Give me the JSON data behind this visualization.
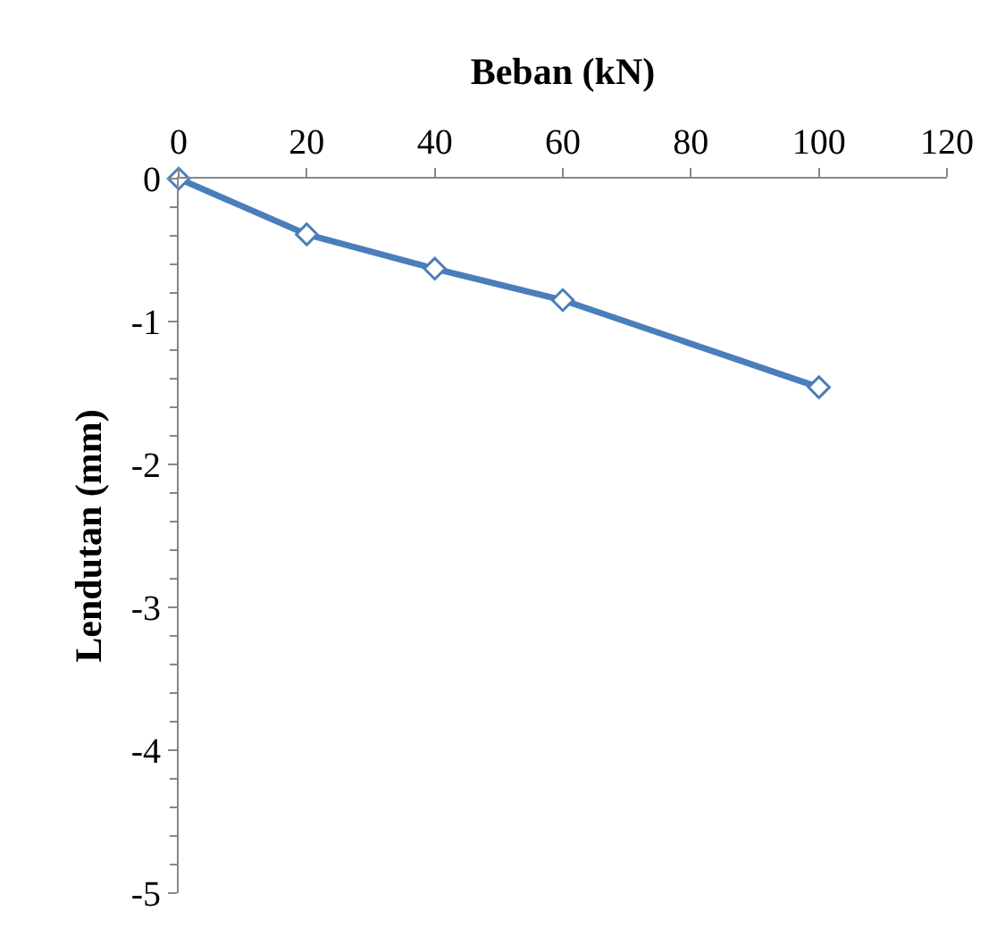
{
  "chart_data": {
    "type": "line",
    "xlabel": "Beban (kN)",
    "ylabel": "Lendutan (mm)",
    "x": [
      0,
      20,
      40,
      60,
      100
    ],
    "series": [
      {
        "color": "#4a7ebb",
        "values": [
          0,
          -0.39,
          -0.63,
          -0.85,
          -1.46
        ]
      }
    ],
    "xlim": [
      0,
      120
    ],
    "xticks": [
      0,
      20,
      40,
      60,
      80,
      100,
      120
    ],
    "ylim": [
      -5,
      0
    ],
    "yticks": [
      -5,
      -4,
      -3,
      -2,
      -1,
      0
    ],
    "legend": false,
    "marker": "diamond",
    "line_style": "solid"
  }
}
